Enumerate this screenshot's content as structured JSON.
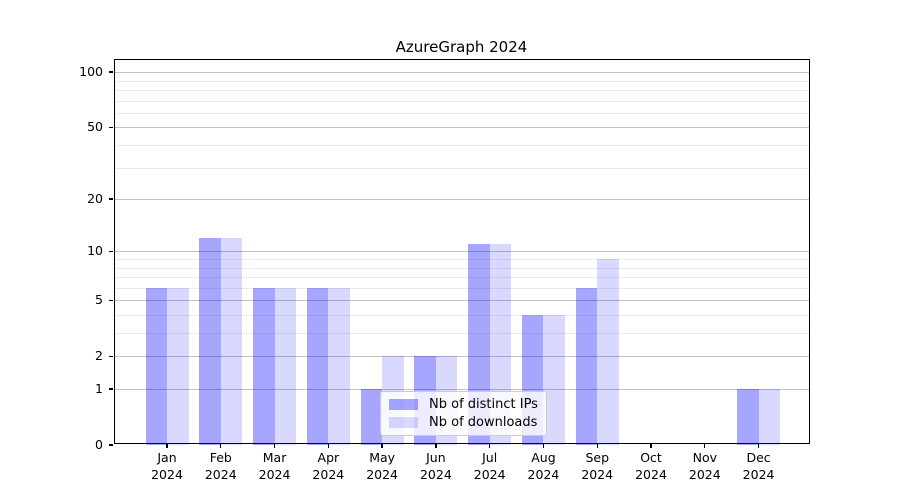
{
  "chart_data": {
    "type": "bar",
    "title": "AzureGraph 2024",
    "categories": [
      "Jan 2024",
      "Feb 2024",
      "Mar 2024",
      "Apr 2024",
      "May 2024",
      "Jun 2024",
      "Jul 2024",
      "Aug 2024",
      "Sep 2024",
      "Oct 2024",
      "Nov 2024",
      "Dec 2024"
    ],
    "series": [
      {
        "name": "Nb of distinct IPs",
        "color": "rgba(0,0,255,0.35)",
        "values": [
          6,
          12,
          6,
          6,
          1,
          2,
          11,
          4,
          6,
          0,
          0,
          1
        ]
      },
      {
        "name": "Nb of downloads",
        "color": "rgba(0,0,255,0.15)",
        "values": [
          6,
          12,
          6,
          6,
          2,
          2,
          11,
          4,
          9,
          0,
          0,
          1
        ]
      }
    ],
    "xlabel": "",
    "ylabel": "",
    "yscale": "log1p",
    "ylim": [
      0,
      115
    ],
    "yticks": [
      0,
      1,
      2,
      5,
      10,
      20,
      50,
      100
    ],
    "minor_gridlines": [
      3,
      4,
      6,
      7,
      8,
      9,
      30,
      40,
      60,
      70,
      80,
      90
    ],
    "grid": true,
    "legend_position": "lower center",
    "colors": {
      "bar_distinct_ips": "rgba(0,0,255,0.35)",
      "bar_downloads": "rgba(0,0,255,0.15)",
      "major_grid": "#c2c2c2",
      "minor_grid": "#ebebeb",
      "spine": "#000000",
      "legend_border": "#cccccc",
      "background": "#ffffff"
    }
  }
}
